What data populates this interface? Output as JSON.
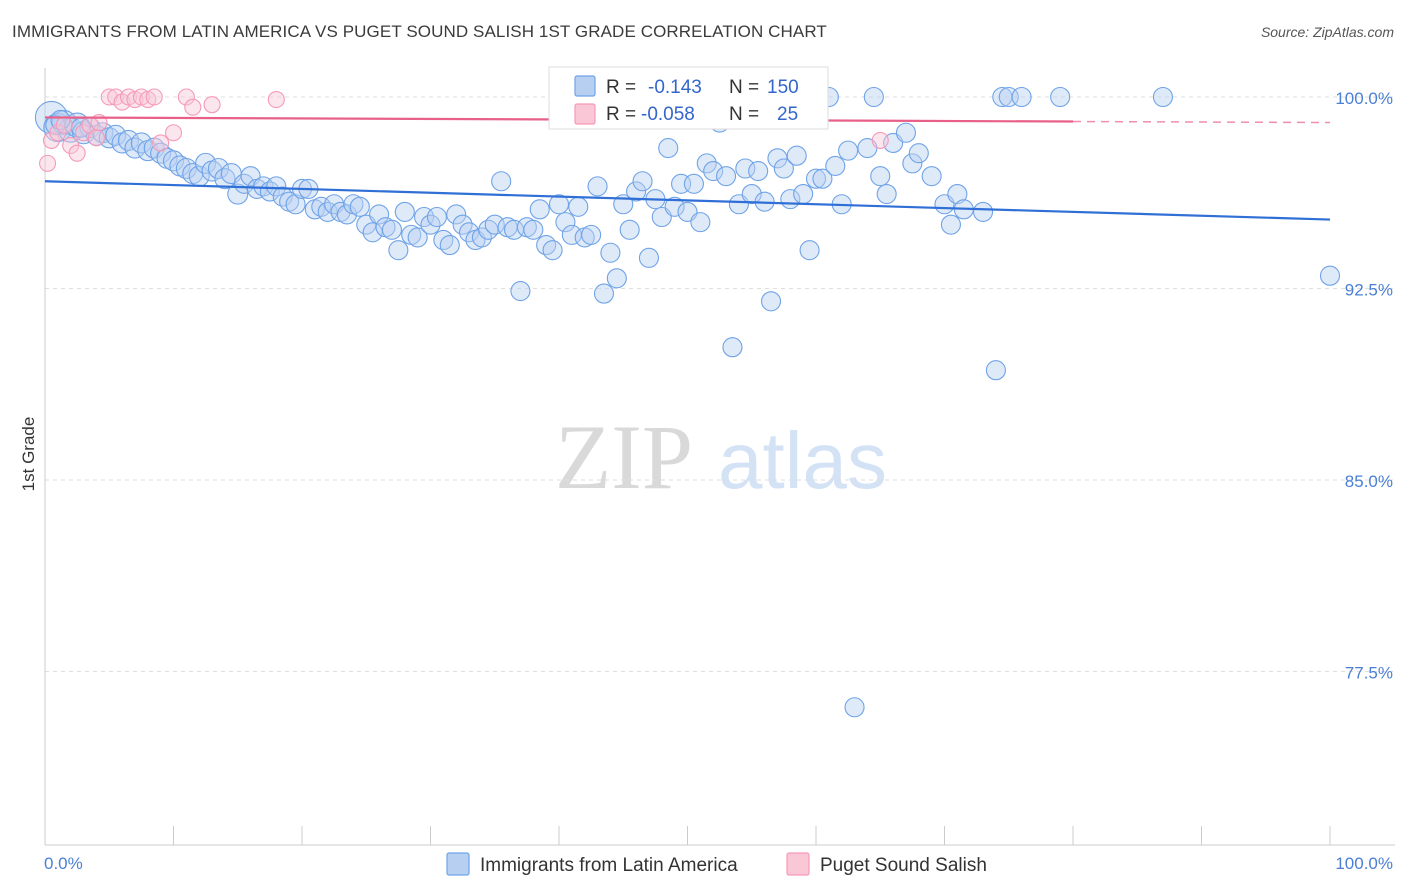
{
  "title": "IMMIGRANTS FROM LATIN AMERICA VS PUGET SOUND SALISH 1ST GRADE CORRELATION CHART",
  "source": "Source: ZipAtlas.com",
  "watermark": {
    "zip": "ZIP",
    "atlas": "atlas"
  },
  "chart_data": {
    "type": "scatter",
    "ylabel": "1st Grade",
    "xlabel": "",
    "xlim": [
      0,
      100
    ],
    "ylim": [
      69.5,
      100.8
    ],
    "x_tick_labels": [
      "0.0%",
      "100.0%"
    ],
    "y_ticks": [
      {
        "value": 100.0,
        "label": "100.0%"
      },
      {
        "value": 92.5,
        "label": "92.5%"
      },
      {
        "value": 85.0,
        "label": "85.0%"
      },
      {
        "value": 77.5,
        "label": "77.5%"
      }
    ],
    "grid": true,
    "legend_placement": "top-center",
    "series": [
      {
        "name": "Immigrants from Latin America",
        "color": "#6fa3e8",
        "line_color": "#2f6fd6",
        "R": "-0.143",
        "N": "150",
        "trend": {
          "x0": 0,
          "y0": 96.7,
          "x1": 100,
          "y1": 95.2,
          "dashed_from": null
        },
        "points": [
          [
            0.5,
            99.2
          ],
          [
            1,
            98.8
          ],
          [
            1.5,
            99.0
          ],
          [
            2,
            98.7
          ],
          [
            2.5,
            98.9
          ],
          [
            3,
            98.6
          ],
          [
            3.5,
            98.8
          ],
          [
            4,
            98.5
          ],
          [
            4.5,
            98.6
          ],
          [
            5,
            98.4
          ],
          [
            5.5,
            98.5
          ],
          [
            6,
            98.2
          ],
          [
            6.5,
            98.3
          ],
          [
            7,
            98.0
          ],
          [
            7.5,
            98.2
          ],
          [
            8,
            97.9
          ],
          [
            8.5,
            98.0
          ],
          [
            9,
            97.8
          ],
          [
            9.5,
            97.6
          ],
          [
            10,
            97.5
          ],
          [
            10.5,
            97.3
          ],
          [
            11,
            97.2
          ],
          [
            11.5,
            97.0
          ],
          [
            12,
            96.9
          ],
          [
            12.5,
            97.4
          ],
          [
            13,
            97.1
          ],
          [
            13.5,
            97.2
          ],
          [
            14,
            96.8
          ],
          [
            14.5,
            97.0
          ],
          [
            15,
            96.2
          ],
          [
            15.5,
            96.6
          ],
          [
            16,
            96.9
          ],
          [
            16.5,
            96.4
          ],
          [
            17,
            96.5
          ],
          [
            17.5,
            96.3
          ],
          [
            18,
            96.5
          ],
          [
            18.5,
            96.1
          ],
          [
            19,
            95.9
          ],
          [
            19.5,
            95.8
          ],
          [
            20,
            96.4
          ],
          [
            20.5,
            96.4
          ],
          [
            21,
            95.6
          ],
          [
            21.5,
            95.7
          ],
          [
            22,
            95.5
          ],
          [
            22.5,
            95.8
          ],
          [
            23,
            95.5
          ],
          [
            23.5,
            95.4
          ],
          [
            24,
            95.8
          ],
          [
            24.5,
            95.7
          ],
          [
            25,
            95.0
          ],
          [
            25.5,
            94.7
          ],
          [
            26,
            95.4
          ],
          [
            26.5,
            94.9
          ],
          [
            27,
            94.8
          ],
          [
            27.5,
            94.0
          ],
          [
            28,
            95.5
          ],
          [
            28.5,
            94.6
          ],
          [
            29,
            94.5
          ],
          [
            29.5,
            95.3
          ],
          [
            30,
            95.0
          ],
          [
            30.5,
            95.3
          ],
          [
            31,
            94.4
          ],
          [
            31.5,
            94.2
          ],
          [
            32,
            95.4
          ],
          [
            32.5,
            95.0
          ],
          [
            33,
            94.7
          ],
          [
            33.5,
            94.4
          ],
          [
            34,
            94.5
          ],
          [
            34.5,
            94.8
          ],
          [
            35,
            95.0
          ],
          [
            35.5,
            96.7
          ],
          [
            36,
            94.9
          ],
          [
            36.5,
            94.8
          ],
          [
            37,
            92.4
          ],
          [
            37.5,
            94.9
          ],
          [
            38,
            94.8
          ],
          [
            38.5,
            95.6
          ],
          [
            39,
            94.2
          ],
          [
            39.5,
            94.0
          ],
          [
            40,
            95.8
          ],
          [
            40.5,
            95.1
          ],
          [
            41,
            94.6
          ],
          [
            41.5,
            95.7
          ],
          [
            42,
            94.5
          ],
          [
            42.5,
            94.6
          ],
          [
            43,
            96.5
          ],
          [
            43.5,
            92.3
          ],
          [
            44,
            93.9
          ],
          [
            44.5,
            92.9
          ],
          [
            45,
            95.8
          ],
          [
            45.5,
            94.8
          ],
          [
            46,
            96.3
          ],
          [
            46.5,
            96.7
          ],
          [
            47,
            93.7
          ],
          [
            47.5,
            96.0
          ],
          [
            48,
            95.3
          ],
          [
            48.5,
            98.0
          ],
          [
            49,
            95.7
          ],
          [
            49.5,
            96.6
          ],
          [
            50,
            95.5
          ],
          [
            50.5,
            96.6
          ],
          [
            51,
            95.1
          ],
          [
            51.5,
            97.4
          ],
          [
            52,
            97.1
          ],
          [
            52.5,
            99.0
          ],
          [
            53,
            96.9
          ],
          [
            53.5,
            90.2
          ],
          [
            54,
            95.8
          ],
          [
            54.5,
            97.2
          ],
          [
            55,
            96.2
          ],
          [
            55.5,
            97.1
          ],
          [
            56,
            95.9
          ],
          [
            56.5,
            92.0
          ],
          [
            57,
            97.6
          ],
          [
            57.5,
            97.2
          ],
          [
            58,
            96.0
          ],
          [
            58.5,
            97.7
          ],
          [
            59,
            96.2
          ],
          [
            59.5,
            94.0
          ],
          [
            60,
            96.8
          ],
          [
            60.5,
            96.8
          ],
          [
            61,
            100.0
          ],
          [
            61.5,
            97.3
          ],
          [
            62,
            95.8
          ],
          [
            62.5,
            97.9
          ],
          [
            63,
            76.1
          ],
          [
            64,
            98.0
          ],
          [
            64.5,
            100.0
          ],
          [
            65,
            96.9
          ],
          [
            65.5,
            96.2
          ],
          [
            66,
            98.2
          ],
          [
            67,
            98.6
          ],
          [
            67.5,
            97.4
          ],
          [
            68,
            97.8
          ],
          [
            69,
            96.9
          ],
          [
            70,
            95.8
          ],
          [
            70.5,
            95.0
          ],
          [
            71,
            96.2
          ],
          [
            71.5,
            95.6
          ],
          [
            73,
            95.5
          ],
          [
            74,
            89.3
          ],
          [
            74.5,
            100.0
          ],
          [
            75,
            100.0
          ],
          [
            76,
            100.0
          ],
          [
            79,
            100.0
          ],
          [
            87,
            100.0
          ],
          [
            100,
            93.0
          ],
          [
            0.8,
            98.9
          ],
          [
            1.2,
            99.1
          ],
          [
            2.8,
            98.8
          ]
        ],
        "point_radius": [
          16,
          14,
          12,
          12,
          12,
          11,
          10,
          10,
          10,
          10,
          10,
          10,
          10,
          10,
          10,
          10,
          10,
          10,
          10,
          10,
          10,
          10,
          10,
          10,
          10,
          10,
          10,
          10,
          10,
          10
        ]
      },
      {
        "name": "Puget Sound Salish",
        "color": "#f59ab8",
        "line_color": "#e8608a",
        "R": "-0.058",
        "N": "25",
        "trend": {
          "x0": 0,
          "y0": 99.2,
          "x1": 100,
          "y1": 99.0,
          "dashed_from": 80
        },
        "points": [
          [
            0.2,
            97.4
          ],
          [
            0.5,
            98.3
          ],
          [
            1,
            98.6
          ],
          [
            1.5,
            98.9
          ],
          [
            2,
            98.1
          ],
          [
            2.5,
            97.8
          ],
          [
            3,
            98.6
          ],
          [
            3.5,
            98.9
          ],
          [
            4,
            98.4
          ],
          [
            4.2,
            99.0
          ],
          [
            5,
            100.0
          ],
          [
            5.5,
            100.0
          ],
          [
            6,
            99.8
          ],
          [
            6.5,
            100.0
          ],
          [
            7,
            99.9
          ],
          [
            7.5,
            100.0
          ],
          [
            8,
            99.9
          ],
          [
            8.5,
            100.0
          ],
          [
            9,
            98.2
          ],
          [
            10,
            98.6
          ],
          [
            11,
            100.0
          ],
          [
            11.5,
            99.6
          ],
          [
            13,
            99.7
          ],
          [
            18,
            99.9
          ],
          [
            65,
            98.3
          ]
        ]
      }
    ]
  }
}
